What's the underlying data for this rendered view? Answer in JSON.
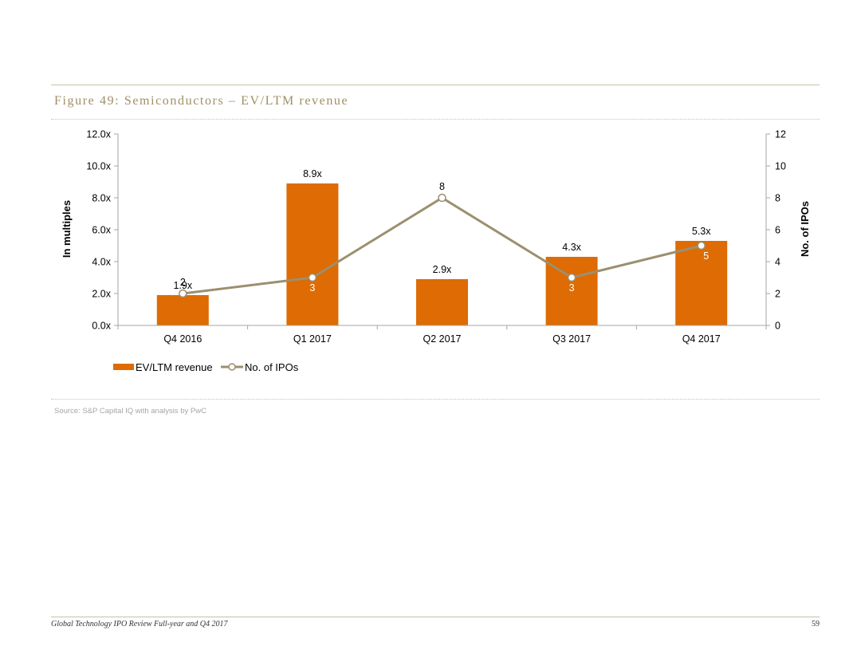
{
  "figure": {
    "title": "Figure 49: Semiconductors – EV/LTM revenue",
    "source": "Source: S&P Capital IQ with analysis by PwC"
  },
  "footer": {
    "report_title": "Global Technology IPO Review Full-year and Q4 2017",
    "page_number": "59"
  },
  "colors": {
    "bar": "#de6b03",
    "line": "#9c8f6f",
    "rule": "#c9c0a8",
    "axis": "#a6a6a6"
  },
  "chart_data": {
    "type": "bar",
    "title": "Figure 49: Semiconductors – EV/LTM revenue",
    "categories": [
      "Q4 2016",
      "Q1 2017",
      "Q2 2017",
      "Q3 2017",
      "Q4 2017"
    ],
    "series": [
      {
        "name": "EV/LTM revenue",
        "type": "bar",
        "axis": "left",
        "values": [
          1.9,
          8.9,
          2.9,
          4.3,
          5.3
        ],
        "labels": [
          "1.9x",
          "8.9x",
          "2.9x",
          "4.3x",
          "5.3x"
        ]
      },
      {
        "name": "No. of IPOs",
        "type": "line",
        "axis": "right",
        "values": [
          2,
          3,
          8,
          3,
          5
        ],
        "labels": [
          "2",
          "3",
          "8",
          "3",
          "5"
        ]
      }
    ],
    "ylabel": "In multiples",
    "y2label": "No. of IPOs",
    "ylim": [
      0,
      12
    ],
    "y2lim": [
      0,
      12
    ],
    "yticks": [
      "0.0x",
      "2.0x",
      "4.0x",
      "6.0x",
      "8.0x",
      "10.0x",
      "12.0x"
    ],
    "y2ticks": [
      "0",
      "2",
      "4",
      "6",
      "8",
      "10",
      "12"
    ],
    "legend": "bottom-left",
    "grid": false
  }
}
